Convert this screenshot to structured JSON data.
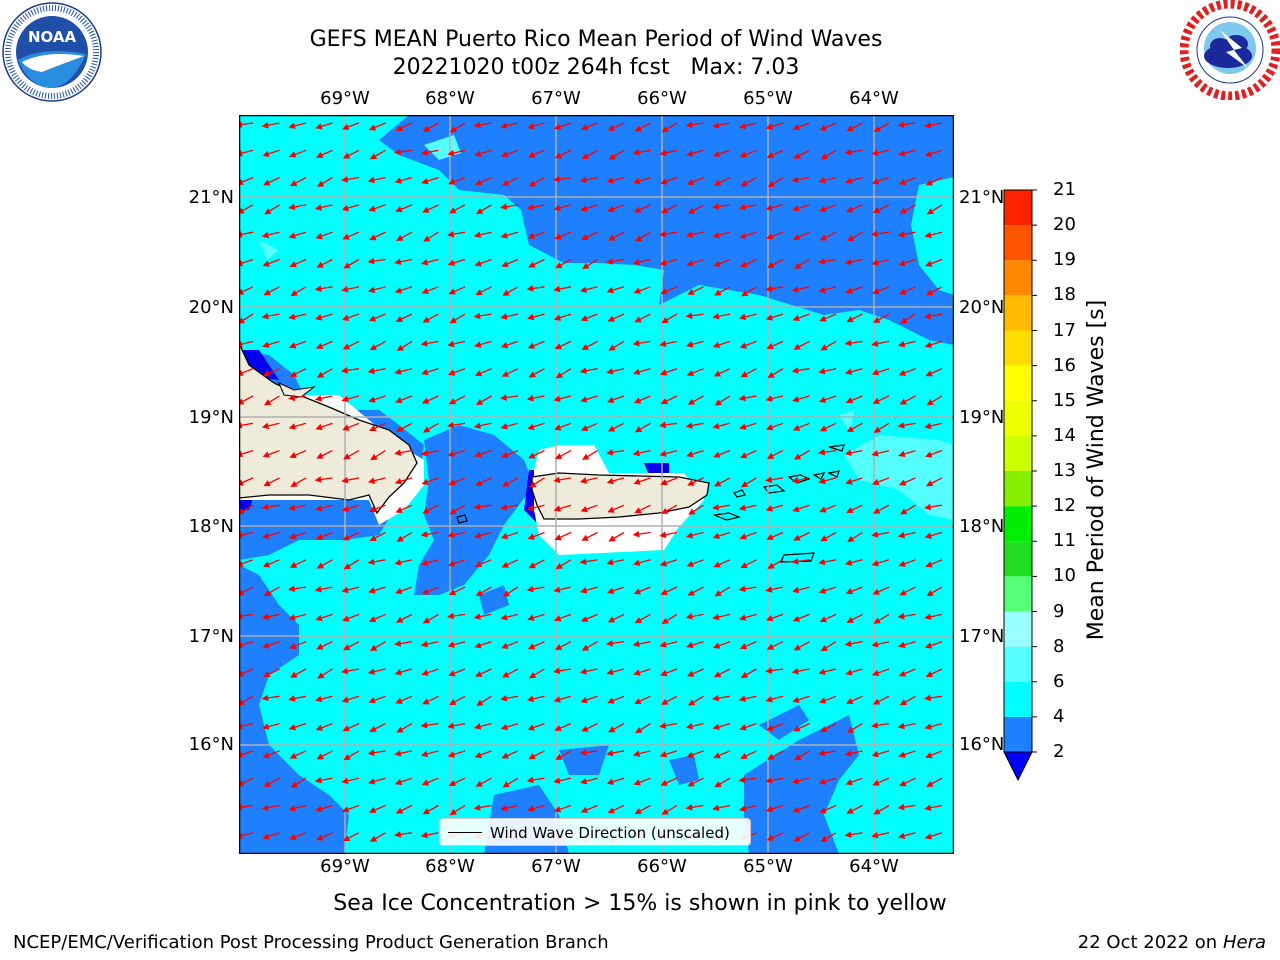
{
  "title": {
    "line1": "GEFS MEAN Puerto Rico Mean Period of Wind Waves",
    "line2": "20221020 t00z 264h fcst   Max: 7.03"
  },
  "logos": {
    "left": {
      "text": "NOAA",
      "ring_text": "NATIONAL OCEANIC AND ATMOSPHERIC ADMINISTRATION · U.S. DEPARTMENT OF COMMERCE"
    },
    "right": {
      "ring_text": "NATIONAL WEATHER SERVICE"
    }
  },
  "map": {
    "lon_ticks": [
      "69°W",
      "68°W",
      "67°W",
      "66°W",
      "65°W",
      "64°W"
    ],
    "lat_ticks": [
      "21°N",
      "20°N",
      "19°N",
      "18°N",
      "17°N",
      "16°N"
    ],
    "legend_label": "Wind Wave Direction (unscaled)",
    "colors": {
      "ocean_cyan": "#00ffff",
      "ocean_blue": "#1e7fff",
      "ocean_deep": "#0000ee",
      "light_cyan": "#55ffff",
      "land": "#efebdb",
      "arrows": "#ff0000",
      "grid": "#b0b0b0"
    }
  },
  "colorbar": {
    "label": "Mean Period of Wind Waves [s]",
    "ticks": [
      "2",
      "4",
      "6",
      "8",
      "9",
      "10",
      "11",
      "12",
      "13",
      "14",
      "15",
      "16",
      "17",
      "18",
      "19",
      "20",
      "21"
    ],
    "colors": [
      "#0000ff",
      "#1e7fff",
      "#00ffff",
      "#55ffff",
      "#99ffff",
      "#55ff77",
      "#22dd22",
      "#00ee00",
      "#88ee00",
      "#ccff00",
      "#eeff00",
      "#ffff00",
      "#ffdd00",
      "#ffbb00",
      "#ff8800",
      "#ff5500",
      "#ff2200",
      "#ff0000"
    ]
  },
  "subtitle": "Sea Ice Concentration > 15% is shown in pink to yellow",
  "footer": {
    "left": "NCEP/EMC/Verification Post Processing Product Generation Branch",
    "date": "22 Oct 2022 on ",
    "machine": "Hera"
  }
}
